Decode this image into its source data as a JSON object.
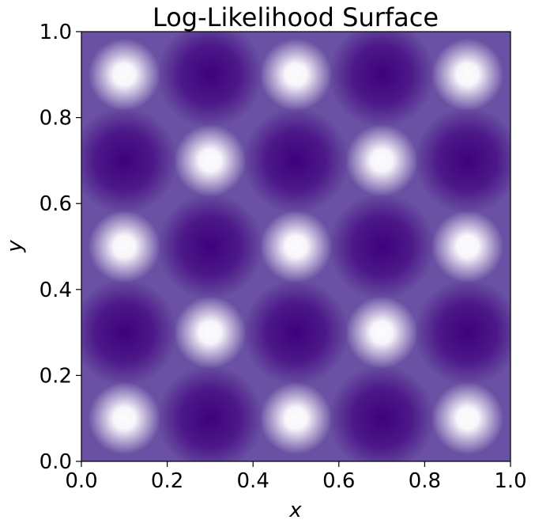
{
  "chart_data": {
    "type": "heatmap",
    "title": "Log-Likelihood Surface",
    "xlabel": "x",
    "ylabel": "y",
    "xlim": [
      0.0,
      1.0
    ],
    "ylim": [
      0.0,
      1.0
    ],
    "xticks": [
      "0.0",
      "0.2",
      "0.4",
      "0.6",
      "0.8",
      "1.0"
    ],
    "yticks": [
      "0.0",
      "0.2",
      "0.4",
      "0.6",
      "0.8",
      "1.0"
    ],
    "colormap": "Purples",
    "colors": {
      "low": "#3f007d",
      "mid": "#6a51a3",
      "high": "#fcfbfd"
    },
    "grid": false,
    "peaks": [
      {
        "x": 0.1,
        "y": 0.1
      },
      {
        "x": 0.5,
        "y": 0.1
      },
      {
        "x": 0.9,
        "y": 0.1
      },
      {
        "x": 0.3,
        "y": 0.3
      },
      {
        "x": 0.7,
        "y": 0.3
      },
      {
        "x": 0.1,
        "y": 0.5
      },
      {
        "x": 0.5,
        "y": 0.5
      },
      {
        "x": 0.9,
        "y": 0.5
      },
      {
        "x": 0.3,
        "y": 0.7
      },
      {
        "x": 0.7,
        "y": 0.7
      },
      {
        "x": 0.1,
        "y": 0.9
      },
      {
        "x": 0.5,
        "y": 0.9
      },
      {
        "x": 0.9,
        "y": 0.9
      }
    ],
    "troughs": [
      {
        "x": 0.3,
        "y": 0.1
      },
      {
        "x": 0.7,
        "y": 0.1
      },
      {
        "x": 0.1,
        "y": 0.3
      },
      {
        "x": 0.5,
        "y": 0.3
      },
      {
        "x": 0.9,
        "y": 0.3
      },
      {
        "x": 0.3,
        "y": 0.5
      },
      {
        "x": 0.7,
        "y": 0.5
      },
      {
        "x": 0.1,
        "y": 0.7
      },
      {
        "x": 0.5,
        "y": 0.7
      },
      {
        "x": 0.9,
        "y": 0.7
      },
      {
        "x": 0.3,
        "y": 0.9
      },
      {
        "x": 0.7,
        "y": 0.9
      }
    ]
  }
}
